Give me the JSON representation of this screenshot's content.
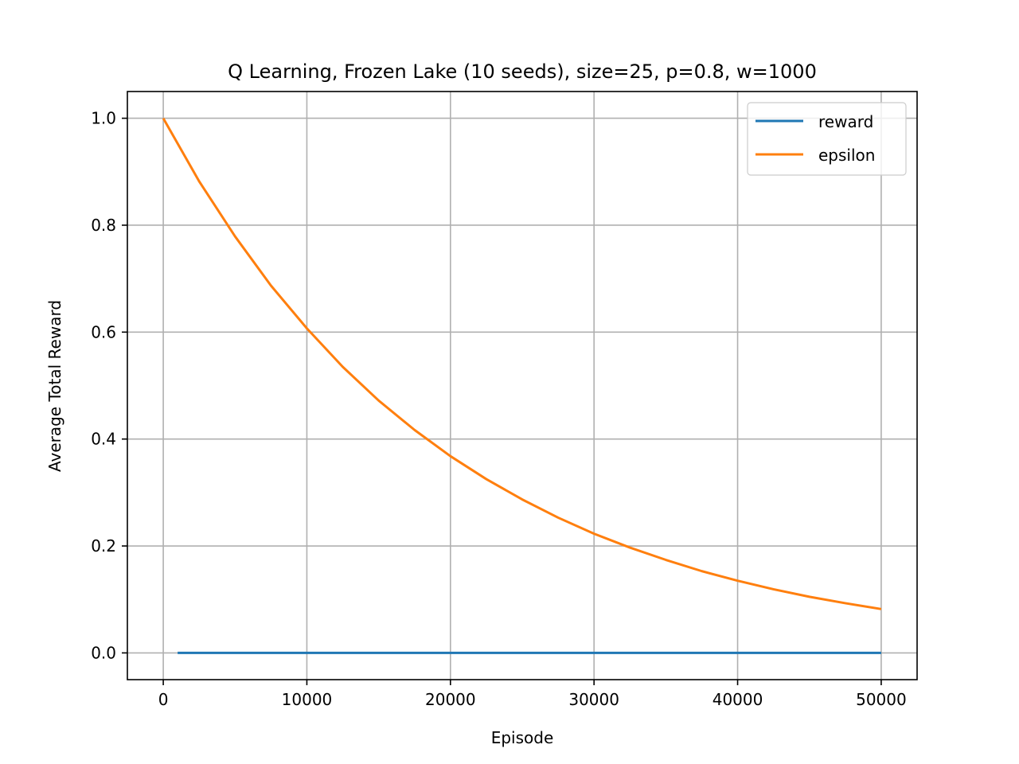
{
  "chart_data": {
    "type": "line",
    "title": "Q Learning, Frozen Lake (10 seeds), size=25, p=0.8, w=1000",
    "xlabel": "Episode",
    "ylabel": "Average Total Reward",
    "xlim": [
      -2500,
      52500
    ],
    "ylim": [
      -0.05,
      1.05
    ],
    "xticks": [
      0,
      10000,
      20000,
      30000,
      40000,
      50000
    ],
    "xtick_labels": [
      "0",
      "10000",
      "20000",
      "30000",
      "40000",
      "50000"
    ],
    "yticks": [
      0.0,
      0.2,
      0.4,
      0.6,
      0.8,
      1.0
    ],
    "ytick_labels": [
      "0.0",
      "0.2",
      "0.4",
      "0.6",
      "0.8",
      "1.0"
    ],
    "grid": true,
    "legend_position": "top-right",
    "series": [
      {
        "name": "reward",
        "color": "#1f77b4",
        "x": [
          1000,
          5000,
          10000,
          15000,
          20000,
          25000,
          30000,
          35000,
          40000,
          45000,
          50000
        ],
        "y": [
          0.0,
          0.0,
          0.0,
          0.0,
          0.0,
          0.0,
          0.0,
          0.0,
          0.0,
          0.0,
          0.0
        ]
      },
      {
        "name": "epsilon",
        "color": "#ff7f0e",
        "x": [
          0,
          2500,
          5000,
          7500,
          10000,
          12500,
          15000,
          17500,
          20000,
          22500,
          25000,
          27500,
          30000,
          32500,
          35000,
          37500,
          40000,
          42500,
          45000,
          47500,
          50000
        ],
        "y": [
          1.0,
          0.882,
          0.779,
          0.687,
          0.607,
          0.535,
          0.472,
          0.417,
          0.368,
          0.325,
          0.287,
          0.253,
          0.223,
          0.197,
          0.174,
          0.153,
          0.135,
          0.119,
          0.105,
          0.093,
          0.082
        ]
      }
    ]
  }
}
